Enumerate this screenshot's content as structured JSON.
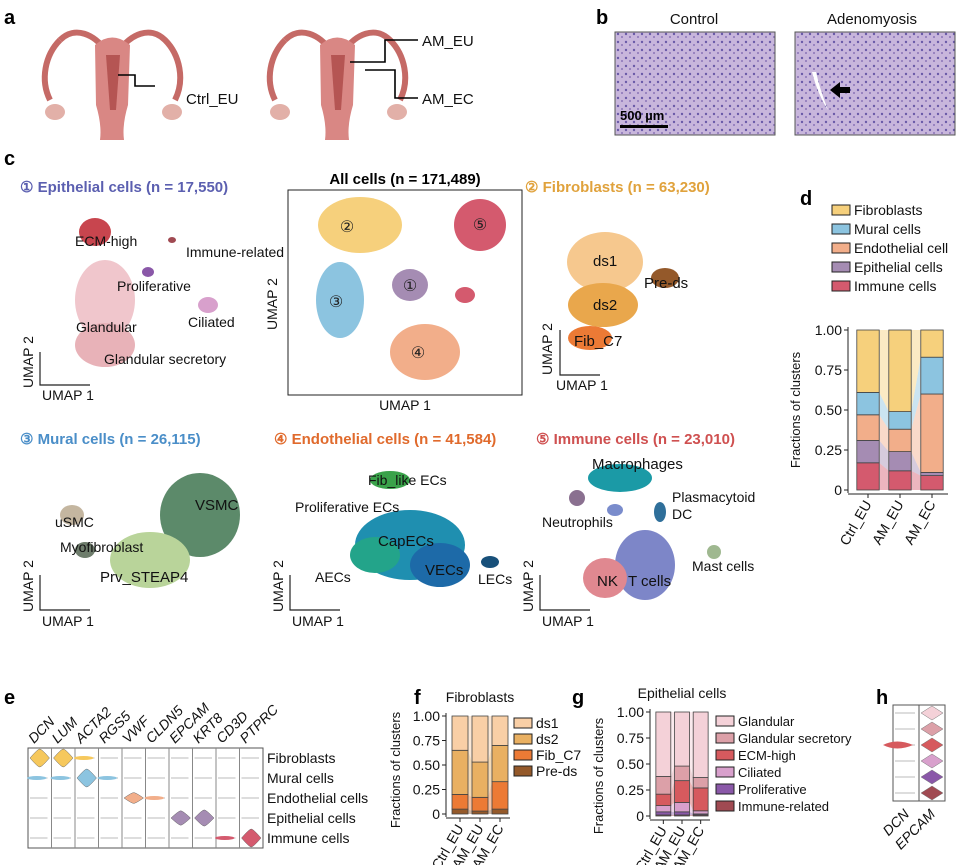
{
  "panels": {
    "a": "a",
    "b": "b",
    "c": "c",
    "d": "d",
    "e": "e",
    "f": "f",
    "g": "g",
    "h": "h"
  },
  "panel_a": {
    "labels": {
      "ctrl_eu": "Ctrl_EU",
      "am_eu": "AM_EU",
      "am_ec": "AM_EC"
    }
  },
  "panel_b": {
    "control": "Control",
    "adenomyosis": "Adenomyosis",
    "scale_bar": "500 µm"
  },
  "panel_c": {
    "umap1": "UMAP 1",
    "umap2": "UMAP 2",
    "epithelial": {
      "title": "① Epithelial cells (n = 17,550)",
      "color": "#5b5fb0",
      "clusters": [
        "ECM-high",
        "Immune-related",
        "Proliferative",
        "Ciliated",
        "Glandular",
        "Glandular secretory"
      ]
    },
    "all": {
      "title": "All cells (n = 171,489)",
      "markers": [
        "①",
        "②",
        "③",
        "④",
        "⑤"
      ]
    },
    "fibroblasts": {
      "title": "② Fibroblasts (n = 63,230)",
      "color": "#e0a23c",
      "clusters": [
        "ds1",
        "ds2",
        "Fib_C7",
        "Pre-ds"
      ]
    },
    "mural": {
      "title": "③ Mural cells (n = 26,115)",
      "color": "#4a8ec8",
      "clusters": [
        "VSMC",
        "uSMC",
        "Myofibroblast",
        "Prv_STEAP4"
      ]
    },
    "endothelial": {
      "title": "④ Endothelial cells (n = 41,584)",
      "color": "#e06a2c",
      "clusters": [
        "Fib_like ECs",
        "Proliferative ECs",
        "CapECs",
        "AECs",
        "VECs",
        "LECs"
      ]
    },
    "immune": {
      "title": "⑤ Immune cells (n = 23,010)",
      "color": "#cf5050",
      "clusters": [
        "Macrophages",
        "Plasmacytoid",
        "DC",
        "Neutrophils",
        "Mast cells",
        "NK",
        "T cells"
      ]
    }
  },
  "panel_e": {
    "genes": [
      "DCN",
      "LUM",
      "ACTA2",
      "RGS5",
      "VWF",
      "CLDN5",
      "EPCAM",
      "KRT8",
      "CD3D",
      "PTPRC"
    ],
    "cell_types": [
      "Fibroblasts",
      "Mural cells",
      "Endothelial cells",
      "Epithelial cells",
      "Immune cells"
    ]
  },
  "panel_h": {
    "genes": [
      "DCN",
      "EPCAM"
    ]
  },
  "chart_data": [
    {
      "id": "d",
      "type": "bar",
      "stacked": true,
      "title": "",
      "xlabel": "",
      "ylabel": "Fractions of clusters",
      "ylim": [
        0,
        1
      ],
      "y_ticks": [
        "0",
        "0.25",
        "0.50",
        "0.75",
        "1.00"
      ],
      "categories": [
        "Ctrl_EU",
        "AM_EU",
        "AM_EC"
      ],
      "legend": "top",
      "series": [
        {
          "name": "Fibroblasts",
          "color": "#f6d07c",
          "values": [
            0.39,
            0.51,
            0.17
          ]
        },
        {
          "name": "Mural cells",
          "color": "#8cc4e0",
          "values": [
            0.14,
            0.11,
            0.23
          ]
        },
        {
          "name": "Endothelial cell",
          "color": "#f2ae8a",
          "values": [
            0.16,
            0.14,
            0.49
          ]
        },
        {
          "name": "Epithelial cells",
          "color": "#a58cb3",
          "values": [
            0.14,
            0.12,
            0.02
          ]
        },
        {
          "name": "Immune cells",
          "color": "#d45a6e",
          "values": [
            0.17,
            0.12,
            0.09
          ]
        }
      ]
    },
    {
      "id": "f",
      "type": "bar",
      "stacked": true,
      "title": "Fibroblasts",
      "xlabel": "",
      "ylabel": "Fractions of clusters",
      "ylim": [
        0,
        1
      ],
      "y_ticks": [
        "0",
        "0.25",
        "0.50",
        "0.75",
        "1.00"
      ],
      "categories": [
        "Ctrl_EU",
        "AM_EU",
        "AM_EC"
      ],
      "legend": "right",
      "series": [
        {
          "name": "ds1",
          "color": "#f9cfa6",
          "values": [
            0.35,
            0.47,
            0.3
          ]
        },
        {
          "name": "ds2",
          "color": "#e9b062",
          "values": [
            0.45,
            0.36,
            0.37
          ]
        },
        {
          "name": "Fib_C7",
          "color": "#ec7a35",
          "values": [
            0.15,
            0.14,
            0.28
          ]
        },
        {
          "name": "Pre-ds",
          "color": "#94592a",
          "values": [
            0.05,
            0.03,
            0.05
          ]
        }
      ]
    },
    {
      "id": "g",
      "type": "bar",
      "stacked": true,
      "title": "Epithelial cells",
      "xlabel": "",
      "ylabel": "Fractions of clusters",
      "ylim": [
        0,
        1
      ],
      "y_ticks": [
        "0",
        "0.25",
        "0.50",
        "0.75",
        "1.00"
      ],
      "categories": [
        "Ctrl_EU",
        "AM_EU",
        "AM_EC"
      ],
      "legend": "right",
      "series": [
        {
          "name": "Glandular",
          "color": "#f4d1d8",
          "values": [
            0.62,
            0.52,
            0.63
          ]
        },
        {
          "name": "Glandular secretory",
          "color": "#dca0a8",
          "values": [
            0.17,
            0.14,
            0.1
          ]
        },
        {
          "name": "ECM-high",
          "color": "#d65a5e",
          "values": [
            0.11,
            0.21,
            0.22
          ]
        },
        {
          "name": "Ciliated",
          "color": "#d8a0cc",
          "values": [
            0.06,
            0.09,
            0.03
          ]
        },
        {
          "name": "Proliferative",
          "color": "#8a58a8",
          "values": [
            0.03,
            0.03,
            0.01
          ]
        },
        {
          "name": "Immune-related",
          "color": "#a04a52",
          "values": [
            0.01,
            0.01,
            0.01
          ]
        }
      ]
    }
  ]
}
